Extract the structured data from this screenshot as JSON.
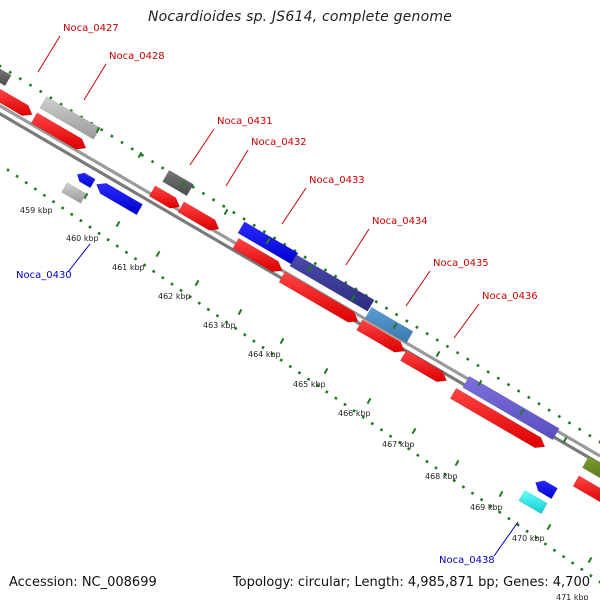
{
  "title": "Nocardioides sp. JS614, complete genome",
  "footer": {
    "accession": "Accession: NC_008699",
    "topology": "Topology: circular; Length: 4,985,871 bp; Genes: 4,700"
  },
  "colors": {
    "forward_label": "#cc0000",
    "reverse_label": "#0000cc",
    "cds": "#ff0000",
    "backbone": "#999999",
    "dotted_track": "#1f7a1f"
  },
  "gene_labels": [
    {
      "name": "Noca_0427",
      "strand": "forward"
    },
    {
      "name": "Noca_0428",
      "strand": "forward"
    },
    {
      "name": "Noca_0431",
      "strand": "forward"
    },
    {
      "name": "Noca_0432",
      "strand": "forward"
    },
    {
      "name": "Noca_0433",
      "strand": "forward"
    },
    {
      "name": "Noca_0434",
      "strand": "forward"
    },
    {
      "name": "Noca_0435",
      "strand": "forward"
    },
    {
      "name": "Noca_0436",
      "strand": "forward"
    },
    {
      "name": "Noca_0430",
      "strand": "reverse"
    },
    {
      "name": "Noca_0438",
      "strand": "reverse"
    }
  ],
  "tick_labels": [
    "459 kbp",
    "460 kbp",
    "461 kbp",
    "462 kbp",
    "463 kbp",
    "464 kbp",
    "465 kbp",
    "466 kbp",
    "467 kbp",
    "468 kbp",
    "469 kbp",
    "470 kbp",
    "471 kbp"
  ]
}
